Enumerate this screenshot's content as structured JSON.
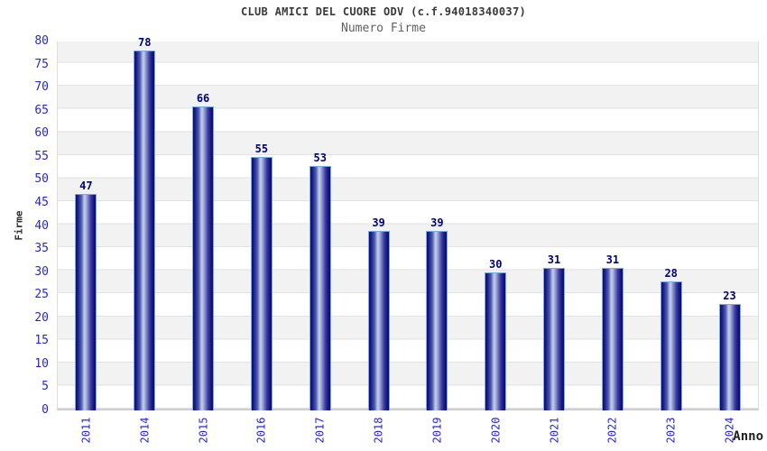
{
  "chart_data": {
    "type": "bar",
    "title": "CLUB AMICI DEL CUORE ODV (c.f.94018340037)",
    "subtitle": "Numero Firme",
    "categories": [
      "2011",
      "2014",
      "2015",
      "2016",
      "2017",
      "2018",
      "2019",
      "2020",
      "2021",
      "2022",
      "2023",
      "2024"
    ],
    "values": [
      47,
      78,
      66,
      55,
      53,
      39,
      39,
      30,
      31,
      31,
      28,
      23
    ],
    "xlabel": "Anno",
    "ylabel": "Firme",
    "ylim": [
      0,
      80
    ],
    "yticks": [
      0,
      5,
      10,
      15,
      20,
      25,
      30,
      35,
      40,
      45,
      50,
      55,
      60,
      65,
      70,
      75,
      80
    ],
    "grid": true,
    "legend_position": "none",
    "band_colors": [
      "#ffffff",
      "#f2f2f2"
    ],
    "gridline_color": "#e2e2e2",
    "bar_gradient": [
      "#0b0b72",
      "#c6cfec",
      "#0b0b72"
    ],
    "bar_border_color": "#76ace6",
    "tick_label_color": "#2727cf",
    "value_label_color": "#00007e",
    "title_color": "#3a3a3a",
    "subtitle_color": "#606060"
  }
}
